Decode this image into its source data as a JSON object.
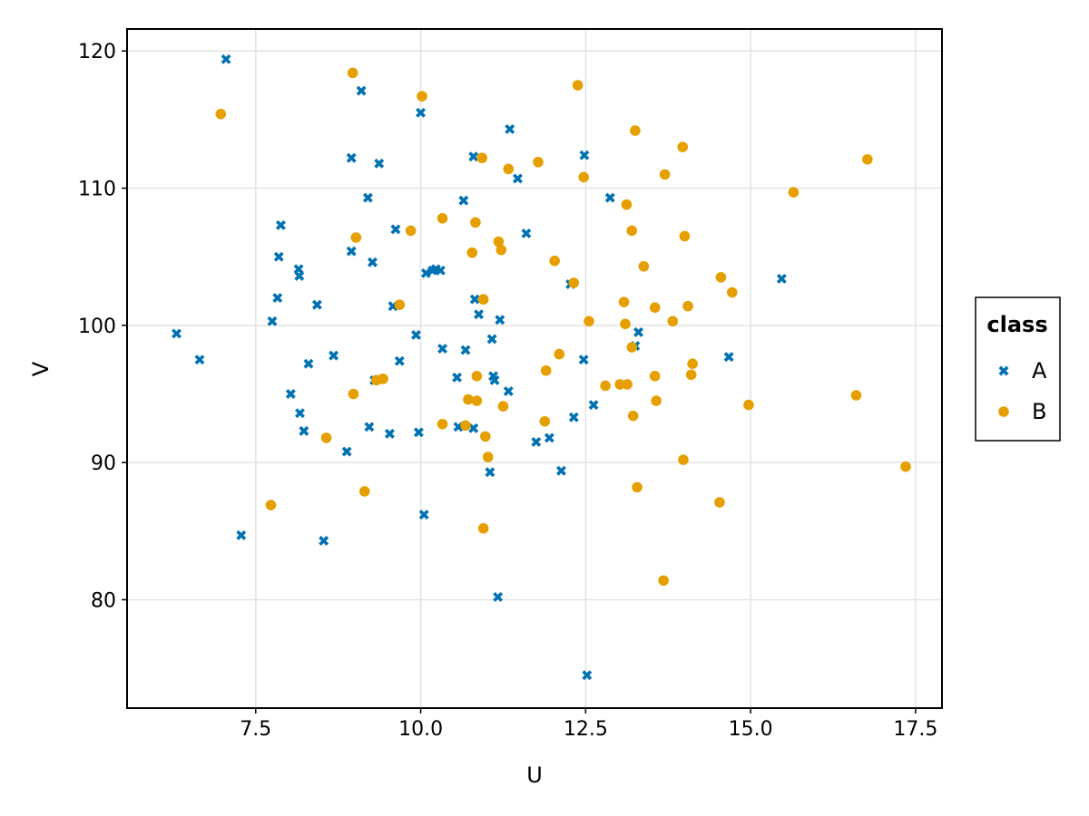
{
  "chart_data": {
    "type": "scatter",
    "title": "",
    "xlabel": "U",
    "ylabel": "V",
    "xlim": [
      5.55,
      17.9
    ],
    "ylim": [
      72.1,
      121.6
    ],
    "xticks": [
      7.5,
      10.0,
      12.5,
      15.0,
      17.5
    ],
    "xtick_labels": [
      "7.5",
      "10.0",
      "12.5",
      "15.0",
      "17.5"
    ],
    "yticks": [
      80,
      90,
      100,
      110,
      120
    ],
    "ytick_labels": [
      "80",
      "90",
      "100",
      "110",
      "120"
    ],
    "grid": true,
    "legend": {
      "title": "class",
      "placement": "right"
    },
    "series": [
      {
        "name": "A",
        "marker": "x-cross",
        "color": "#0072b2",
        "points": [
          [
            6.3,
            99.4
          ],
          [
            6.65,
            97.5
          ],
          [
            7.05,
            119.4
          ],
          [
            7.28,
            84.7
          ],
          [
            7.75,
            100.3
          ],
          [
            7.83,
            102.0
          ],
          [
            7.85,
            105.0
          ],
          [
            7.88,
            107.3
          ],
          [
            8.03,
            95.0
          ],
          [
            8.15,
            104.1
          ],
          [
            8.16,
            103.6
          ],
          [
            8.17,
            93.6
          ],
          [
            8.23,
            92.3
          ],
          [
            8.3,
            97.2
          ],
          [
            8.43,
            101.5
          ],
          [
            8.53,
            84.3
          ],
          [
            8.68,
            97.8
          ],
          [
            8.88,
            90.8
          ],
          [
            8.95,
            105.4
          ],
          [
            8.95,
            112.2
          ],
          [
            9.1,
            117.1
          ],
          [
            9.2,
            109.3
          ],
          [
            9.22,
            92.6
          ],
          [
            9.27,
            104.6
          ],
          [
            9.3,
            96.0
          ],
          [
            9.37,
            111.8
          ],
          [
            9.53,
            92.1
          ],
          [
            9.58,
            101.4
          ],
          [
            9.62,
            107.0
          ],
          [
            9.68,
            97.4
          ],
          [
            9.93,
            99.3
          ],
          [
            9.97,
            92.2
          ],
          [
            10.0,
            115.5
          ],
          [
            10.05,
            86.2
          ],
          [
            10.08,
            103.8
          ],
          [
            10.18,
            104.0
          ],
          [
            10.23,
            104.1
          ],
          [
            10.3,
            104.0
          ],
          [
            10.33,
            98.3
          ],
          [
            10.55,
            96.2
          ],
          [
            10.57,
            92.6
          ],
          [
            10.65,
            109.1
          ],
          [
            10.68,
            98.2
          ],
          [
            10.8,
            92.5
          ],
          [
            10.8,
            112.3
          ],
          [
            10.82,
            101.9
          ],
          [
            10.88,
            100.8
          ],
          [
            11.05,
            89.3
          ],
          [
            11.08,
            99.0
          ],
          [
            11.1,
            96.3
          ],
          [
            11.12,
            96.0
          ],
          [
            11.17,
            80.2
          ],
          [
            11.2,
            100.4
          ],
          [
            11.33,
            95.2
          ],
          [
            11.35,
            114.3
          ],
          [
            11.47,
            110.7
          ],
          [
            11.6,
            106.7
          ],
          [
            11.75,
            91.5
          ],
          [
            11.95,
            91.8
          ],
          [
            12.13,
            89.4
          ],
          [
            12.27,
            103.0
          ],
          [
            12.32,
            93.3
          ],
          [
            12.47,
            97.5
          ],
          [
            12.48,
            112.4
          ],
          [
            12.52,
            74.5
          ],
          [
            12.62,
            94.2
          ],
          [
            12.87,
            109.3
          ],
          [
            13.25,
            98.5
          ],
          [
            13.3,
            99.5
          ],
          [
            14.67,
            97.7
          ],
          [
            15.47,
            103.4
          ]
        ]
      },
      {
        "name": "B",
        "marker": "circle",
        "color": "#e69f00",
        "points": [
          [
            6.97,
            115.4
          ],
          [
            7.73,
            86.9
          ],
          [
            8.57,
            91.8
          ],
          [
            8.97,
            118.4
          ],
          [
            8.98,
            95.0
          ],
          [
            9.02,
            106.4
          ],
          [
            9.15,
            87.9
          ],
          [
            9.33,
            96.0
          ],
          [
            9.43,
            96.1
          ],
          [
            9.68,
            101.5
          ],
          [
            9.85,
            106.9
          ],
          [
            10.02,
            116.7
          ],
          [
            10.33,
            107.8
          ],
          [
            10.33,
            92.8
          ],
          [
            10.68,
            92.7
          ],
          [
            10.72,
            94.6
          ],
          [
            10.78,
            105.3
          ],
          [
            10.83,
            107.5
          ],
          [
            10.85,
            96.3
          ],
          [
            10.85,
            94.5
          ],
          [
            10.93,
            112.2
          ],
          [
            10.95,
            85.2
          ],
          [
            10.95,
            101.9
          ],
          [
            10.98,
            91.9
          ],
          [
            11.02,
            90.4
          ],
          [
            11.18,
            106.1
          ],
          [
            11.22,
            105.5
          ],
          [
            11.25,
            94.1
          ],
          [
            11.33,
            111.4
          ],
          [
            11.78,
            111.9
          ],
          [
            11.9,
            96.7
          ],
          [
            11.88,
            93.0
          ],
          [
            12.03,
            104.7
          ],
          [
            12.1,
            97.9
          ],
          [
            12.32,
            103.1
          ],
          [
            12.38,
            117.5
          ],
          [
            12.47,
            110.8
          ],
          [
            12.55,
            100.3
          ],
          [
            12.8,
            95.6
          ],
          [
            13.02,
            95.7
          ],
          [
            13.08,
            101.7
          ],
          [
            13.1,
            100.1
          ],
          [
            13.12,
            108.8
          ],
          [
            13.13,
            95.7
          ],
          [
            13.2,
            106.9
          ],
          [
            13.2,
            98.4
          ],
          [
            13.22,
            93.4
          ],
          [
            13.25,
            114.2
          ],
          [
            13.28,
            88.2
          ],
          [
            13.38,
            104.3
          ],
          [
            13.55,
            96.3
          ],
          [
            13.55,
            101.3
          ],
          [
            13.57,
            94.5
          ],
          [
            13.68,
            81.4
          ],
          [
            13.7,
            111.0
          ],
          [
            13.82,
            100.3
          ],
          [
            13.97,
            113.0
          ],
          [
            13.98,
            90.2
          ],
          [
            14.0,
            106.5
          ],
          [
            14.05,
            101.4
          ],
          [
            14.1,
            96.4
          ],
          [
            14.12,
            97.2
          ],
          [
            14.53,
            87.1
          ],
          [
            14.55,
            103.5
          ],
          [
            14.72,
            102.4
          ],
          [
            14.97,
            94.2
          ],
          [
            15.65,
            109.7
          ],
          [
            16.6,
            94.9
          ],
          [
            16.77,
            112.1
          ],
          [
            17.35,
            89.7
          ]
        ]
      }
    ]
  }
}
